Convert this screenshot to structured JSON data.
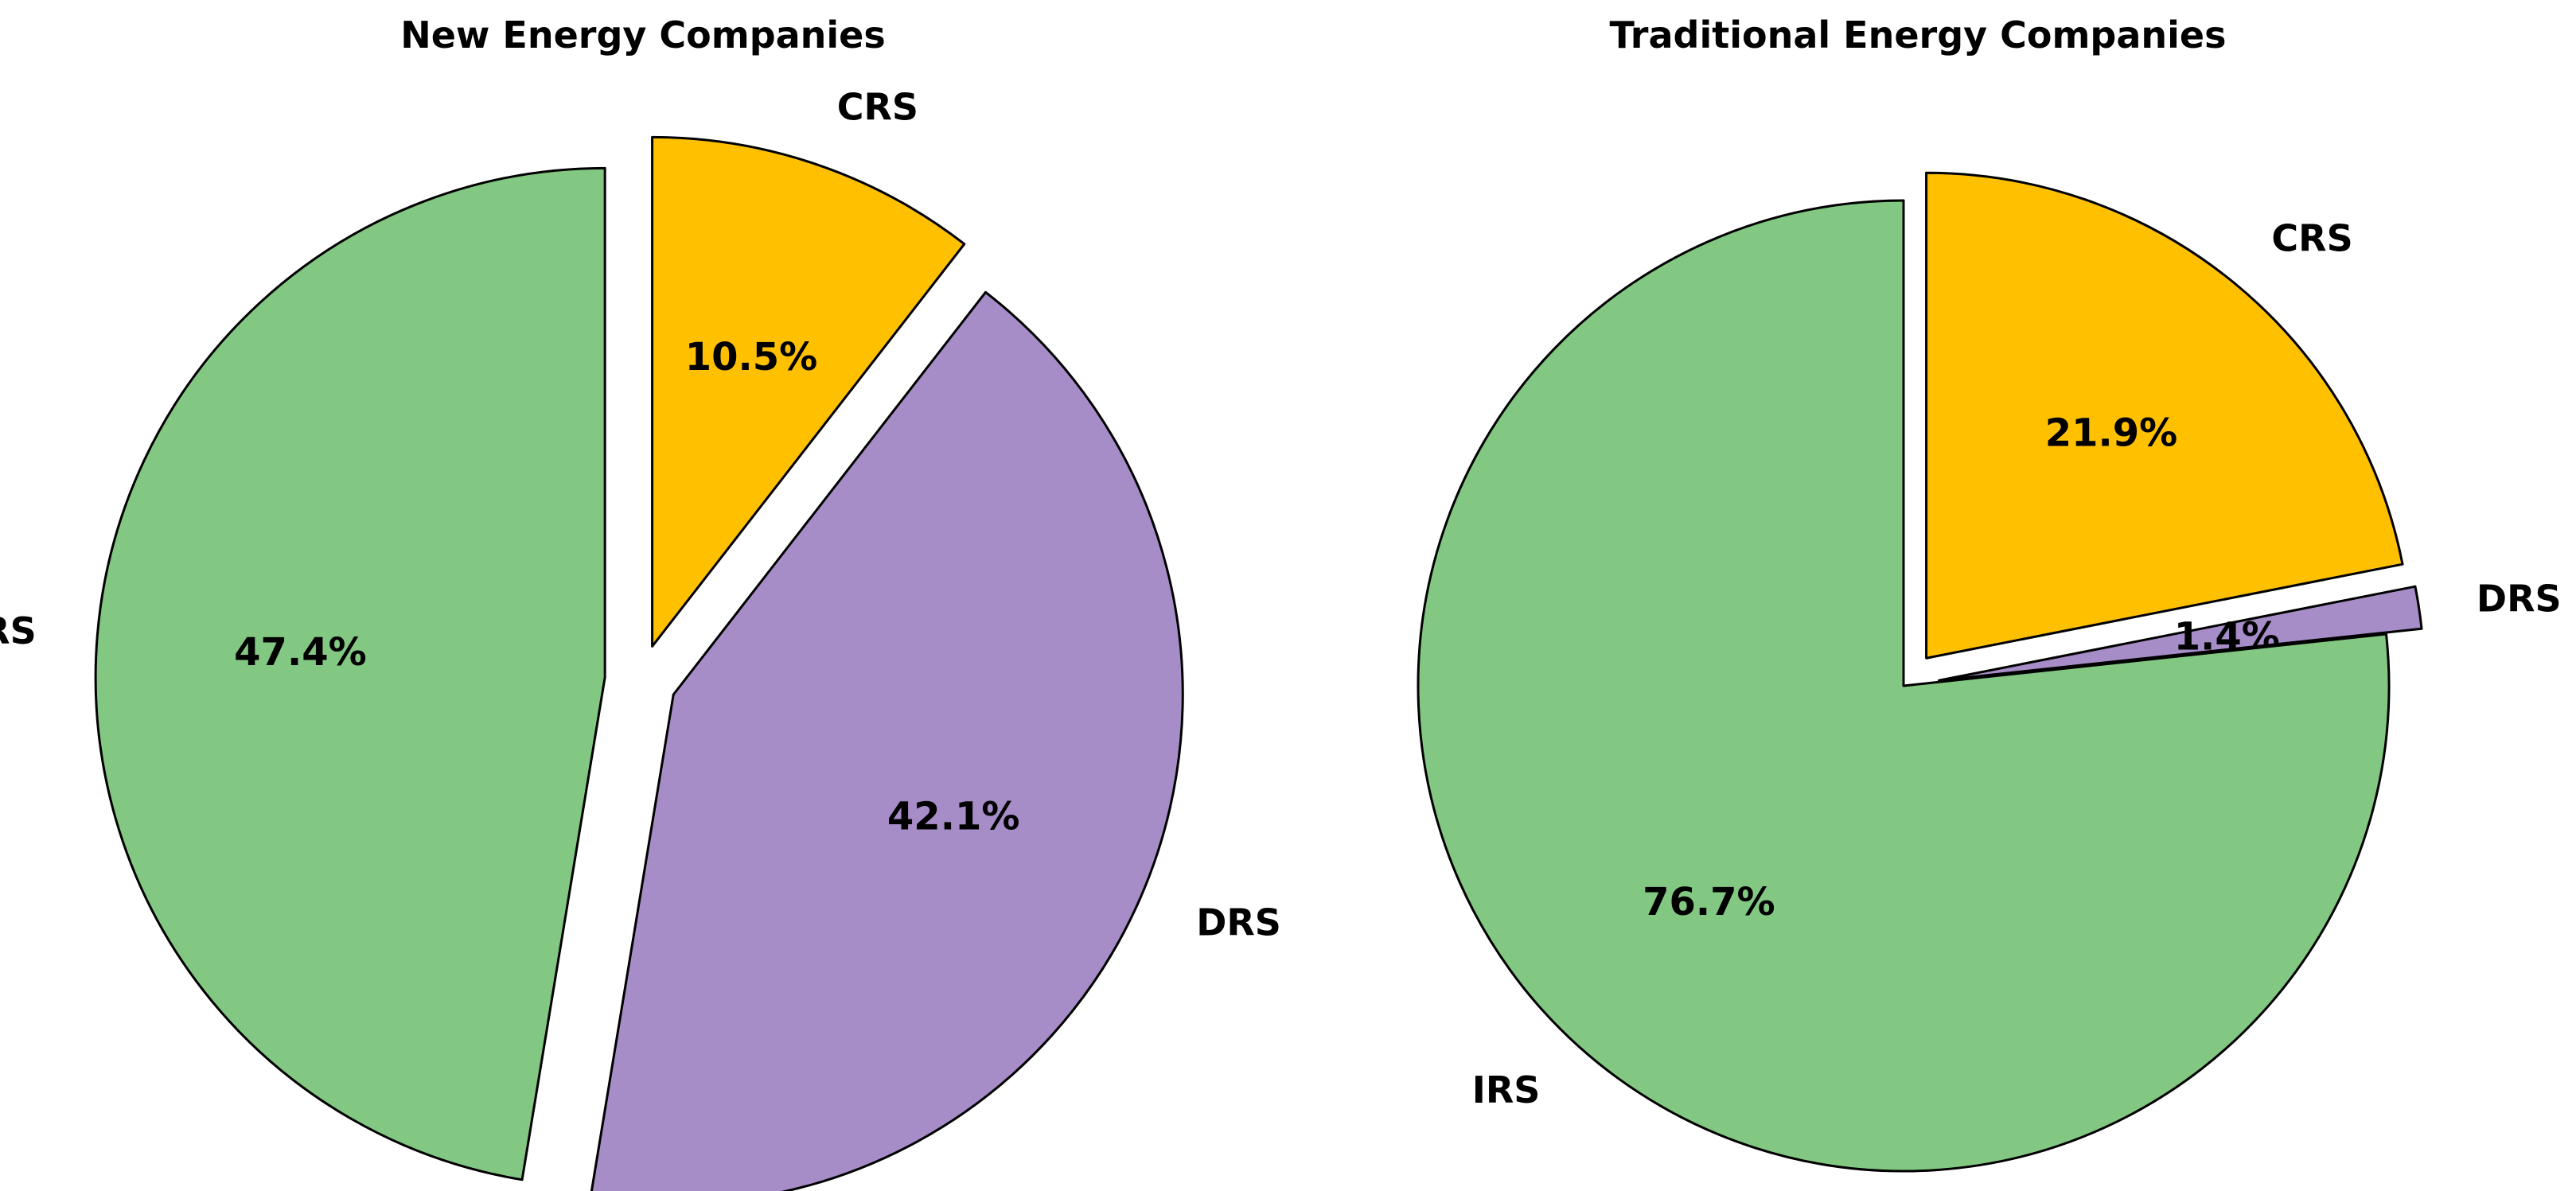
{
  "chart_data": [
    {
      "type": "pie",
      "title": "New Energy Companies",
      "categories": [
        "CRS",
        "DRS",
        "IRS"
      ],
      "values": [
        10.5,
        42.1,
        47.4
      ],
      "value_labels": [
        "10.5%",
        "42.1%",
        "47.4%"
      ],
      "colors": [
        "#FFC000",
        "#A68DC7",
        "#82C882"
      ],
      "exploded": [
        true,
        true,
        true
      ],
      "start_angle_deg": 90,
      "direction": "clockwise",
      "legend": "none"
    },
    {
      "type": "pie",
      "title": "Traditional Energy Companies",
      "categories": [
        "CRS",
        "DRS",
        "IRS"
      ],
      "values": [
        21.9,
        1.4,
        76.7
      ],
      "value_labels": [
        "21.9%",
        "1.4%",
        "76.7%"
      ],
      "colors": [
        "#FFC000",
        "#A68DC7",
        "#82C882"
      ],
      "exploded": [
        true,
        true,
        false
      ],
      "start_angle_deg": 90,
      "direction": "clockwise",
      "legend": "none"
    }
  ]
}
